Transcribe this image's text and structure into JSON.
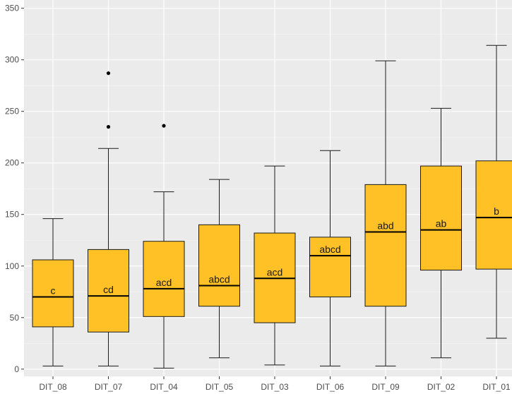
{
  "chart_data": {
    "type": "box",
    "title": "",
    "xlabel": "",
    "ylabel": "",
    "ylim": [
      -7,
      358
    ],
    "yticks": [
      0,
      50,
      100,
      150,
      200,
      250,
      300,
      350
    ],
    "grid": true,
    "fill_color": "#FFC125",
    "panel_color": "#EBEBEB",
    "groups": [
      {
        "name": "DIT_08",
        "label": "c",
        "lower_whisker": 3,
        "q1": 41,
        "median": 70,
        "q3": 106,
        "upper_whisker": 146,
        "outliers": []
      },
      {
        "name": "DIT_07",
        "label": "cd",
        "lower_whisker": 3,
        "q1": 36,
        "median": 71,
        "q3": 116,
        "upper_whisker": 214,
        "outliers": [
          235,
          287
        ]
      },
      {
        "name": "DIT_04",
        "label": "acd",
        "lower_whisker": 1,
        "q1": 51,
        "median": 78,
        "q3": 124,
        "upper_whisker": 172,
        "outliers": [
          236
        ]
      },
      {
        "name": "DIT_05",
        "label": "abcd",
        "lower_whisker": 11,
        "q1": 61,
        "median": 81,
        "q3": 140,
        "upper_whisker": 184,
        "outliers": []
      },
      {
        "name": "DIT_03",
        "label": "acd",
        "lower_whisker": 4,
        "q1": 45,
        "median": 88,
        "q3": 132,
        "upper_whisker": 197,
        "outliers": []
      },
      {
        "name": "DIT_06",
        "label": "abcd",
        "lower_whisker": 3,
        "q1": 70,
        "median": 110,
        "q3": 128,
        "upper_whisker": 212,
        "outliers": []
      },
      {
        "name": "DIT_09",
        "label": "abd",
        "lower_whisker": 3,
        "q1": 61,
        "median": 133,
        "q3": 179,
        "upper_whisker": 299,
        "outliers": []
      },
      {
        "name": "DIT_02",
        "label": "ab",
        "lower_whisker": 11,
        "q1": 96,
        "median": 135,
        "q3": 197,
        "upper_whisker": 253,
        "outliers": []
      },
      {
        "name": "DIT_01",
        "label": "b",
        "lower_whisker": 30,
        "q1": 97,
        "median": 147,
        "q3": 202,
        "upper_whisker": 314,
        "outliers": []
      }
    ]
  }
}
